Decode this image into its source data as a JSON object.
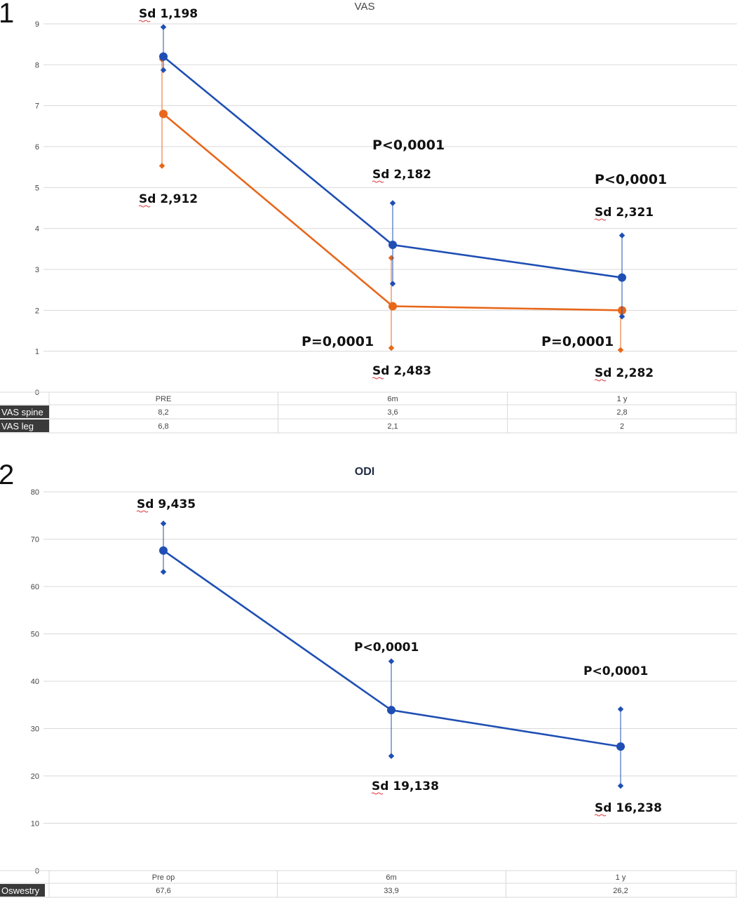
{
  "panels": [
    {
      "number": "1",
      "title": "VAS",
      "ylim": [
        0,
        9
      ],
      "yticks": [
        "0",
        "1",
        "2",
        "3",
        "4",
        "5",
        "6",
        "7",
        "8",
        "9"
      ],
      "colors": {
        "spine": "#1f4fb4",
        "leg": "#e8671a"
      },
      "table": {
        "headers": [
          "PRE",
          "6m",
          "1 y"
        ],
        "rows": [
          {
            "label": "VAS spine",
            "cells": [
              "8,2",
              "3,6",
              "2,8"
            ]
          },
          {
            "label": "VAS leg",
            "cells": [
              "6,8",
              "2,1",
              "2"
            ]
          }
        ]
      },
      "annotations": [
        {
          "text": "Sd 1,198",
          "kind": "sd"
        },
        {
          "text": "Sd 2,912",
          "kind": "sd"
        },
        {
          "text": "P<0,0001",
          "kind": "p"
        },
        {
          "text": "Sd 2,182",
          "kind": "sd"
        },
        {
          "text": "P<0,0001",
          "kind": "p"
        },
        {
          "text": "Sd 2,321",
          "kind": "sd"
        },
        {
          "text": "P=0,0001",
          "kind": "p"
        },
        {
          "text": "Sd 2,483",
          "kind": "sd"
        },
        {
          "text": "P=0,0001",
          "kind": "p"
        },
        {
          "text": "Sd 2,282",
          "kind": "sd"
        }
      ]
    },
    {
      "number": "2",
      "title": "ODI",
      "ylim": [
        0,
        80
      ],
      "yticks": [
        "0",
        "10",
        "20",
        "30",
        "40",
        "50",
        "60",
        "70",
        "80"
      ],
      "colors": {
        "odi": "#1f4fb4"
      },
      "table": {
        "headers": [
          "Pre op",
          "6m",
          "1 y"
        ],
        "rows": [
          {
            "label": "Oswestry",
            "cells": [
              "67,6",
              "33,9",
              "26,2"
            ]
          }
        ]
      },
      "annotations": [
        {
          "text": "Sd 9,435",
          "kind": "sd"
        },
        {
          "text": "P<0,0001",
          "kind": "p"
        },
        {
          "text": "Sd 19,138",
          "kind": "sd"
        },
        {
          "text": "P<0,0001",
          "kind": "p"
        },
        {
          "text": "Sd 16,238",
          "kind": "sd"
        }
      ]
    }
  ],
  "chart_data": [
    {
      "type": "line",
      "title": "VAS",
      "categories": [
        "PRE",
        "6m",
        "1 y"
      ],
      "ylim": [
        0,
        9
      ],
      "grid": true,
      "series": [
        {
          "name": "VAS spine",
          "values": [
            8.2,
            3.6,
            2.8
          ],
          "err_low": [
            7.87,
            2.65,
            1.85
          ],
          "err_high": [
            8.92,
            4.62,
            3.83
          ]
        },
        {
          "name": "VAS leg",
          "values": [
            6.8,
            2.1,
            2.0
          ],
          "err_low": [
            5.53,
            1.08,
            1.03
          ],
          "err_high": [
            8.13,
            3.28,
            2.0
          ]
        }
      ]
    },
    {
      "type": "line",
      "title": "ODI",
      "categories": [
        "Pre op",
        "6m",
        "1 y"
      ],
      "ylim": [
        0,
        80
      ],
      "grid": true,
      "series": [
        {
          "name": "Oswestry",
          "values": [
            67.6,
            33.9,
            26.2
          ],
          "err_low": [
            63.1,
            24.2,
            17.9
          ],
          "err_high": [
            73.3,
            44.2,
            34.1
          ]
        }
      ]
    }
  ]
}
